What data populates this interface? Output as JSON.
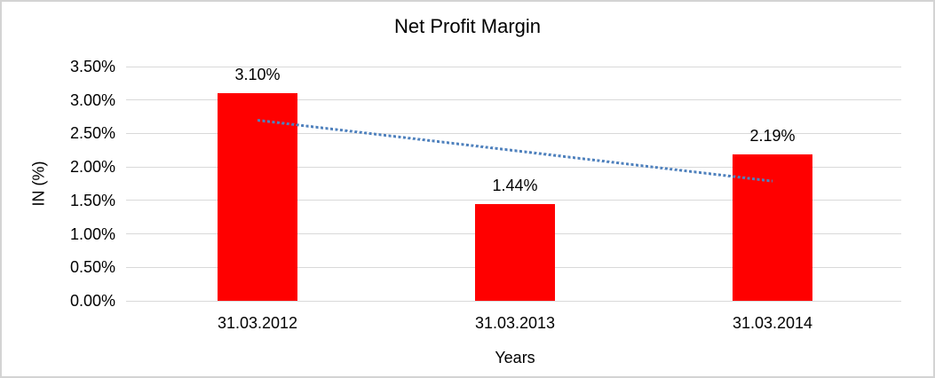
{
  "chart_data": {
    "type": "bar",
    "title": "Net Profit Margin",
    "xlabel": "Years",
    "ylabel": "IN (%)",
    "categories": [
      "31.03.2012",
      "31.03.2013",
      "31.03.2014"
    ],
    "values": [
      3.1,
      1.44,
      2.19
    ],
    "value_labels": [
      "3.10%",
      "1.44%",
      "2.19%"
    ],
    "ylim": [
      0,
      3.5
    ],
    "ytick_step": 0.5,
    "ytick_labels": [
      "0.00%",
      "0.50%",
      "1.00%",
      "1.50%",
      "2.00%",
      "2.50%",
      "3.00%",
      "3.50%"
    ],
    "grid": "horizontal",
    "legend": "none",
    "bar_color": "#ff0000",
    "gridline_color": "#d9d9d9",
    "border_color": "#d3d3d3",
    "text_color": "#000000",
    "trendline": {
      "style": "dotted",
      "color": "#4f81bd",
      "start_value": 2.7,
      "end_value": 1.79
    }
  }
}
